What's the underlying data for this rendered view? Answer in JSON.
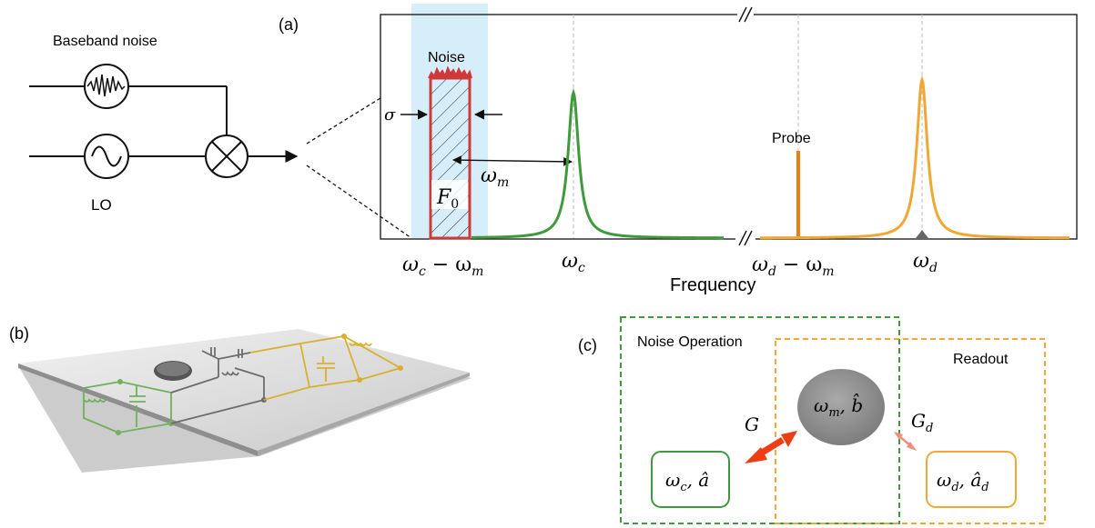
{
  "panel_a": {
    "label": "(a)",
    "baseband_noise": "Baseband noise",
    "lo": "LO",
    "noise_label": "Noise",
    "probe_label": "Probe",
    "sigma": "σ",
    "F0_main": "F",
    "F0_sub": "0",
    "omega_m": "ω",
    "omega_m_sub": "m",
    "x_axis_title": "Frequency",
    "ticks": [
      {
        "main": "ω",
        "sub": "c",
        "rest": " − ω",
        "sub2": "m"
      },
      {
        "main": "ω",
        "sub": "c",
        "rest": "",
        "sub2": ""
      },
      {
        "main": "ω",
        "sub": "d",
        "rest": " − ω",
        "sub2": "m"
      },
      {
        "main": "ω",
        "sub": "d",
        "rest": "",
        "sub2": ""
      }
    ],
    "colors": {
      "noise_band": "#d6eef9",
      "noise_box": "#d0393a",
      "cavity_peak": "#3f9a3c",
      "detector_peak": "#f0a734",
      "probe": "#ec7c13"
    }
  },
  "panel_b": {
    "label": "(b)",
    "colors": {
      "left_circuit": "#6fb25b",
      "right_circuit": "#d8b030",
      "middle_circuit": "#6d6d6d"
    }
  },
  "panel_c": {
    "label": "(c)",
    "noise_operation": "Noise Operation",
    "readout": "Readout",
    "G": "G",
    "G_d": "G",
    "G_d_sub": "d",
    "mech_main": "ω",
    "mech_sub": "m",
    "mech_op": ", b̂",
    "cav_main": "ω",
    "cav_sub": "c",
    "cav_op": ", â",
    "det_main": "ω",
    "det_sub": "d",
    "det_op": ", â",
    "det_op_sub": "d",
    "colors": {
      "green_box": "#3f9a3c",
      "orange_box": "#f0a734",
      "arrow_G": "#ee3d12",
      "arrow_Gd": "#f28c7b"
    }
  }
}
